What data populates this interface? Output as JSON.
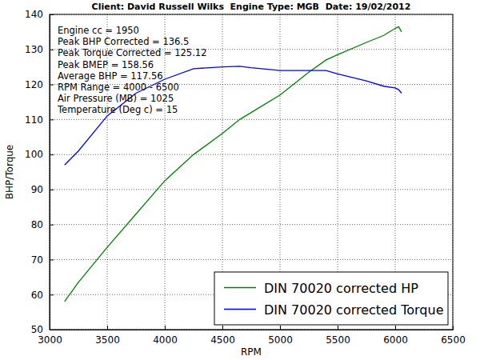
{
  "chart_data": {
    "type": "line",
    "title": "Client: David Russell Wilks  Engine Type: MGB  Date: 19/02/2012",
    "x_label": "RPM",
    "y_label": "BHP/Torque",
    "annotations": [
      "Engine cc = 1950",
      "Peak BHP Corrected = 136.5",
      "Peak Torque Corrected = 125.12",
      "Peak BMEP = 158.56",
      "Average BHP = 117.56",
      "RPM Range = 4000 - 6500",
      "Air Pressure (MB) = 1025",
      "Temperature (Deg c) = 15"
    ],
    "x": [
      3130,
      3250,
      3500,
      3750,
      4000,
      4250,
      4500,
      4650,
      4750,
      5000,
      5250,
      5400,
      5500,
      5750,
      5900,
      6000,
      6030,
      6055
    ],
    "series": [
      {
        "name": "DIN 70020 corrected HP",
        "color": "#008000",
        "values": [
          58,
          63.5,
          73.5,
          83,
          92.5,
          100,
          106,
          110,
          112,
          117,
          123.5,
          127,
          128.5,
          132,
          134,
          136,
          136.5,
          135
        ]
      },
      {
        "name": "DIN 70020 corrected Torque",
        "color": "#0000ff",
        "values": [
          97,
          101,
          111,
          117.5,
          121.5,
          124.5,
          125,
          125.2,
          124.8,
          124,
          124,
          124,
          123,
          121,
          119.5,
          119,
          118.5,
          117.5
        ]
      }
    ],
    "xlim": [
      3000,
      6500
    ],
    "xticks": [
      3000,
      3500,
      4000,
      4500,
      5000,
      5500,
      6000,
      6500
    ],
    "ylim": [
      50,
      140
    ],
    "yticks": [
      50,
      60,
      70,
      80,
      90,
      100,
      110,
      120,
      130,
      140
    ],
    "grid": true,
    "legend": "lower right"
  }
}
